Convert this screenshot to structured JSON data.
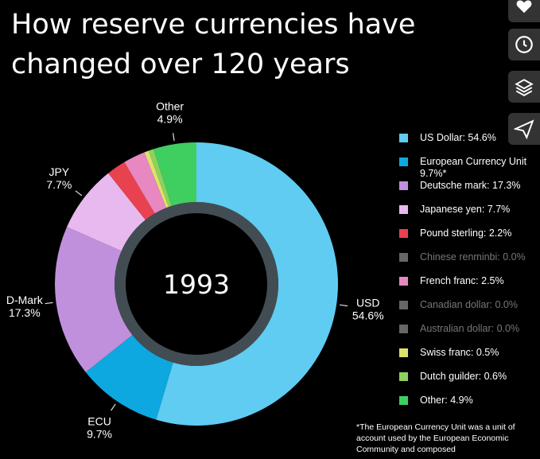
{
  "title_lines": [
    "How reserve currencies have",
    "changed over 120 years"
  ],
  "colors": {
    "usd": "#60ccf2",
    "ecu": "#0ea8e0",
    "dmark": "#c190dd",
    "jpy": "#e8b9ee",
    "gbp": "#e8414f",
    "cny": "#666666",
    "frf": "#e887c0",
    "cad": "#666666",
    "aud": "#666666",
    "chf": "#dde36c",
    "nlg": "#8ed15e",
    "other": "#3ecf60",
    "inner_ring": "#4e5a62"
  },
  "chart_data": {
    "type": "donut",
    "year": "1993",
    "slices": [
      {
        "key": "usd",
        "name": "US Dollar",
        "value": 54.6,
        "pct_label": "54.6%"
      },
      {
        "key": "ecu",
        "name": "European Currency Unit",
        "value": 9.7,
        "pct_label": "9.7%"
      },
      {
        "key": "dmark",
        "name": "Deutsche mark",
        "value": 17.3,
        "pct_label": "17.3%"
      },
      {
        "key": "jpy",
        "name": "Japanese yen",
        "value": 7.7,
        "pct_label": "7.7%"
      },
      {
        "key": "gbp",
        "name": "Pound sterling",
        "value": 2.2,
        "pct_label": "2.2%"
      },
      {
        "key": "frf",
        "name": "French franc",
        "value": 2.5,
        "pct_label": "2.5%"
      },
      {
        "key": "chf",
        "name": "Swiss franc",
        "value": 0.5,
        "pct_label": "0.5%"
      },
      {
        "key": "nlg",
        "name": "Dutch guilder",
        "value": 0.6,
        "pct_label": "0.6%"
      },
      {
        "key": "other",
        "name": "Other",
        "value": 4.9,
        "pct_label": "4.9%"
      }
    ],
    "outside_labels": [
      {
        "key": "usd",
        "name": "USD",
        "pct": "54.6%"
      },
      {
        "key": "ecu",
        "name": "ECU",
        "pct": "9.7%"
      },
      {
        "key": "dmark",
        "name": "D-Mark",
        "pct": "17.3%"
      },
      {
        "key": "jpy",
        "name": "JPY",
        "pct": "7.7%"
      },
      {
        "key": "other",
        "name": "Other",
        "pct": "4.9%"
      }
    ],
    "legend": [
      {
        "key": "usd",
        "text": "US Dollar: 54.6%",
        "dim": false
      },
      {
        "key": "ecu",
        "text": "European Currency Unit 9.7%*",
        "dim": false
      },
      {
        "key": "dmark",
        "text": "Deutsche mark: 17.3%",
        "dim": false
      },
      {
        "key": "jpy",
        "text": "Japanese yen: 7.7%",
        "dim": false
      },
      {
        "key": "gbp",
        "text": "Pound sterling: 2.2%",
        "dim": false
      },
      {
        "key": "cny",
        "text": "Chinese renminbi: 0.0%",
        "dim": true
      },
      {
        "key": "frf",
        "text": "French franc: 2.5%",
        "dim": false
      },
      {
        "key": "cad",
        "text": "Canadian dollar: 0.0%",
        "dim": true
      },
      {
        "key": "aud",
        "text": "Australian dollar: 0.0%",
        "dim": true
      },
      {
        "key": "chf",
        "text": "Swiss franc: 0.5%",
        "dim": false
      },
      {
        "key": "nlg",
        "text": "Dutch guilder: 0.6%",
        "dim": false
      },
      {
        "key": "other",
        "text": "Other: 4.9%",
        "dim": false
      }
    ]
  },
  "footnote": "*The European Currency Unit was a unit of account used by the European Economic Community and composed",
  "side_icons": [
    "heart-icon",
    "clock-icon",
    "layers-icon",
    "send-icon"
  ]
}
